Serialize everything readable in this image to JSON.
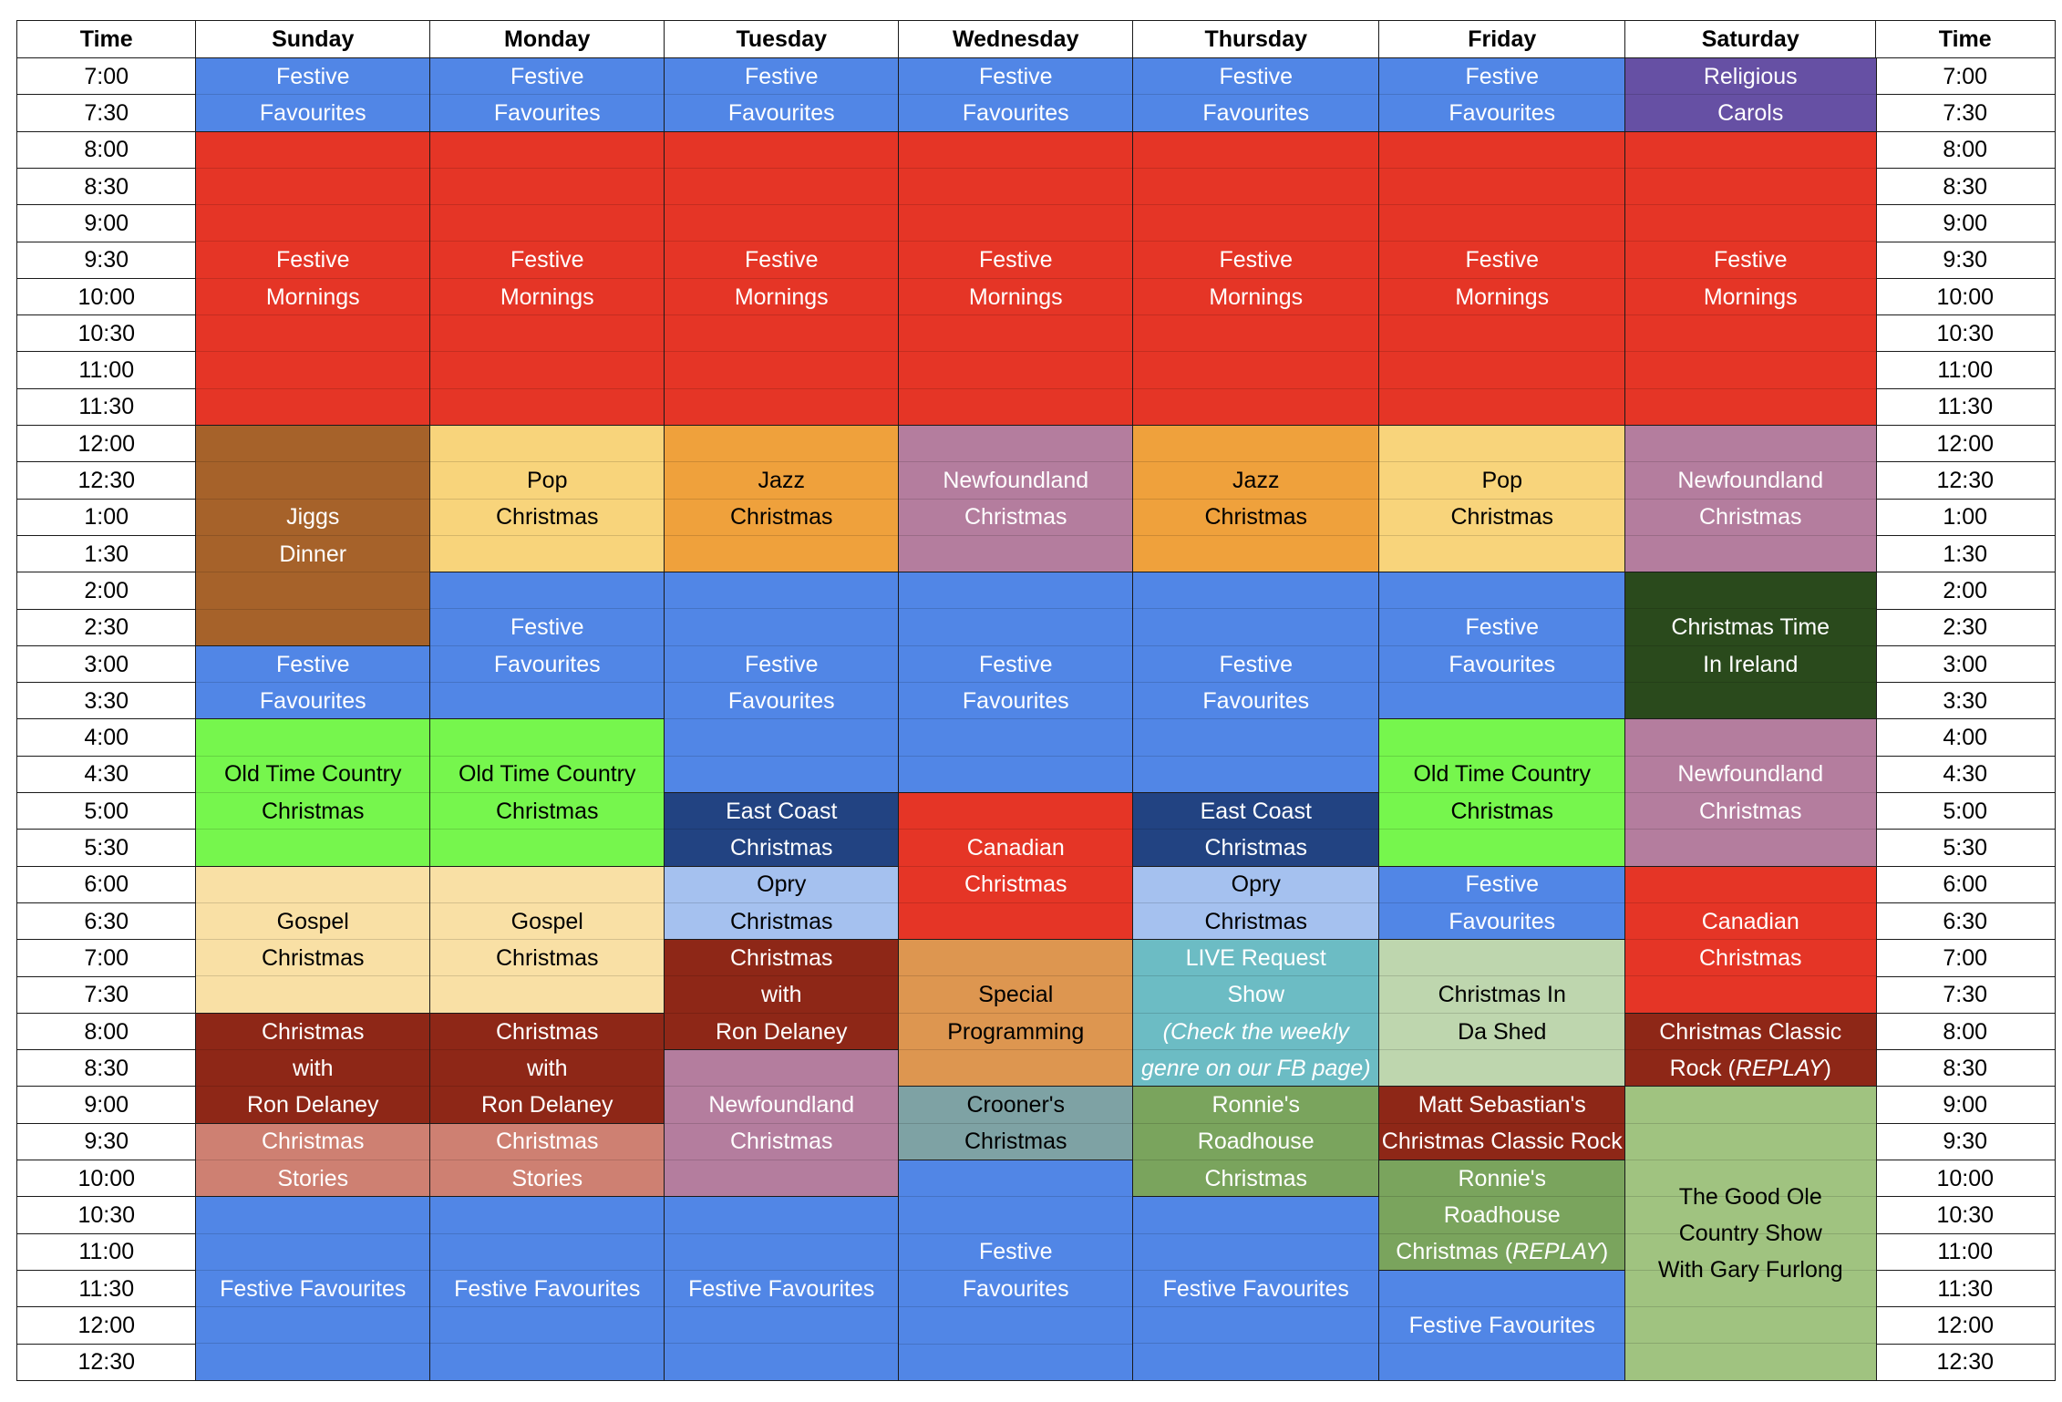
{
  "header": {
    "days": [
      "Sunday",
      "Monday",
      "Tuesday",
      "Wednesday",
      "Thursday",
      "Friday",
      "Saturday"
    ],
    "time_left": "Time",
    "time_right": "Time"
  },
  "times": [
    "7:00",
    "7:30",
    "8:00",
    "8:30",
    "9:00",
    "9:30",
    "10:00",
    "10:30",
    "11:00",
    "11:30",
    "12:00",
    "12:30",
    "1:00",
    "1:30",
    "2:00",
    "2:30",
    "3:00",
    "3:30",
    "4:00",
    "4:30",
    "5:00",
    "5:30",
    "6:00",
    "6:30",
    "7:00",
    "7:30",
    "8:00",
    "8:30",
    "9:00",
    "9:30",
    "10:00",
    "10:30",
    "11:00",
    "11:30",
    "12:00",
    "12:30"
  ],
  "colors": {
    "festive_favourites": "#5186E6",
    "festive_mornings": "#E53526",
    "religious_carols": "#6650A4",
    "jiggs_dinner": "#A6622A",
    "pop_christmas": "#F8D47B",
    "jazz_christmas": "#EFA13C",
    "newfoundland_christmas": "#B47D9E",
    "christmas_time_in_ireland": "#2A4A1C",
    "old_time_country": "#76F64D",
    "east_coast_christmas": "#224382",
    "canadian_christmas": "#E53526",
    "opry_christmas": "#A5C1EF",
    "gospel_christmas": "#F9E0A5",
    "ron_delaney": "#8E2717",
    "special_programming": "#DD9650",
    "live_request": "#6CBCC4",
    "christmas_in_da_shed": "#BED6AE",
    "classic_rock_replay": "#8E2717",
    "crooners_christmas": "#7EA2A4",
    "ronnies_roadhouse": "#7AA45D",
    "matt_sebastian": "#8E2717",
    "christmas_stories": "#CE8072",
    "good_ole_country": "#A0C380"
  },
  "programs": [
    {
      "day": 0,
      "start": 0,
      "span": 2,
      "color": "#5186E6",
      "text_color": "#ffffff",
      "lines": [
        "Festive",
        "Favourites"
      ]
    },
    {
      "day": 0,
      "start": 2,
      "span": 8,
      "color": "#E53526",
      "text_color": "#ffffff",
      "lines": [
        "Festive",
        "Mornings"
      ]
    },
    {
      "day": 0,
      "start": 10,
      "span": 6,
      "color": "#A6622A",
      "text_color": "#ffffff",
      "lines": [
        "Jiggs",
        "Dinner"
      ]
    },
    {
      "day": 0,
      "start": 16,
      "span": 2,
      "color": "#5186E6",
      "text_color": "#ffffff",
      "lines": [
        "Festive",
        "Favourites"
      ]
    },
    {
      "day": 0,
      "start": 18,
      "span": 4,
      "color": "#76F64D",
      "text_color": "#000000",
      "lines": [
        "Old Time Country",
        "Christmas"
      ]
    },
    {
      "day": 0,
      "start": 22,
      "span": 4,
      "color": "#F9E0A5",
      "text_color": "#000000",
      "lines": [
        "Gospel",
        "Christmas"
      ]
    },
    {
      "day": 0,
      "start": 26,
      "span": 3,
      "color": "#8E2717",
      "text_color": "#ffffff",
      "lines": [
        "Christmas",
        "with",
        "Ron Delaney"
      ]
    },
    {
      "day": 0,
      "start": 29,
      "span": 2,
      "color": "#CE8072",
      "text_color": "#ffffff",
      "lines": [
        "Christmas",
        "Stories"
      ]
    },
    {
      "day": 0,
      "start": 31,
      "span": 5,
      "color": "#5186E6",
      "text_color": "#ffffff",
      "lines": [
        "Festive Favourites"
      ]
    },
    {
      "day": 1,
      "start": 0,
      "span": 2,
      "color": "#5186E6",
      "text_color": "#ffffff",
      "lines": [
        "Festive",
        "Favourites"
      ]
    },
    {
      "day": 1,
      "start": 2,
      "span": 8,
      "color": "#E53526",
      "text_color": "#ffffff",
      "lines": [
        "Festive",
        "Mornings"
      ]
    },
    {
      "day": 1,
      "start": 10,
      "span": 4,
      "color": "#F8D47B",
      "text_color": "#000000",
      "lines": [
        "Pop",
        "Christmas"
      ]
    },
    {
      "day": 1,
      "start": 14,
      "span": 4,
      "color": "#5186E6",
      "text_color": "#ffffff",
      "lines": [
        "Festive",
        "Favourites"
      ]
    },
    {
      "day": 1,
      "start": 18,
      "span": 4,
      "color": "#76F64D",
      "text_color": "#000000",
      "lines": [
        "Old Time Country",
        "Christmas"
      ]
    },
    {
      "day": 1,
      "start": 22,
      "span": 4,
      "color": "#F9E0A5",
      "text_color": "#000000",
      "lines": [
        "Gospel",
        "Christmas"
      ]
    },
    {
      "day": 1,
      "start": 26,
      "span": 3,
      "color": "#8E2717",
      "text_color": "#ffffff",
      "lines": [
        "Christmas",
        "with",
        "Ron Delaney"
      ]
    },
    {
      "day": 1,
      "start": 29,
      "span": 2,
      "color": "#CE8072",
      "text_color": "#ffffff",
      "lines": [
        "Christmas",
        "Stories"
      ]
    },
    {
      "day": 1,
      "start": 31,
      "span": 5,
      "color": "#5186E6",
      "text_color": "#ffffff",
      "lines": [
        "Festive Favourites"
      ]
    },
    {
      "day": 2,
      "start": 0,
      "span": 2,
      "color": "#5186E6",
      "text_color": "#ffffff",
      "lines": [
        "Festive",
        "Favourites"
      ]
    },
    {
      "day": 2,
      "start": 2,
      "span": 8,
      "color": "#E53526",
      "text_color": "#ffffff",
      "lines": [
        "Festive",
        "Mornings"
      ]
    },
    {
      "day": 2,
      "start": 10,
      "span": 4,
      "color": "#EFA13C",
      "text_color": "#000000",
      "lines": [
        "Jazz",
        "Christmas"
      ]
    },
    {
      "day": 2,
      "start": 14,
      "span": 6,
      "color": "#5186E6",
      "text_color": "#ffffff",
      "lines": [
        "Festive",
        "Favourites"
      ]
    },
    {
      "day": 2,
      "start": 20,
      "span": 2,
      "color": "#224382",
      "text_color": "#ffffff",
      "lines": [
        "East Coast",
        "Christmas"
      ]
    },
    {
      "day": 2,
      "start": 22,
      "span": 2,
      "color": "#A5C1EF",
      "text_color": "#000000",
      "lines": [
        "Opry",
        "Christmas"
      ]
    },
    {
      "day": 2,
      "start": 24,
      "span": 3,
      "color": "#8E2717",
      "text_color": "#ffffff",
      "lines": [
        "Christmas",
        "with",
        "Ron Delaney"
      ]
    },
    {
      "day": 2,
      "start": 27,
      "span": 4,
      "color": "#B47D9E",
      "text_color": "#ffffff",
      "lines": [
        "Newfoundland",
        "Christmas"
      ]
    },
    {
      "day": 2,
      "start": 31,
      "span": 5,
      "color": "#5186E6",
      "text_color": "#ffffff",
      "lines": [
        "Festive Favourites"
      ]
    },
    {
      "day": 3,
      "start": 0,
      "span": 2,
      "color": "#5186E6",
      "text_color": "#ffffff",
      "lines": [
        "Festive",
        "Favourites"
      ]
    },
    {
      "day": 3,
      "start": 2,
      "span": 8,
      "color": "#E53526",
      "text_color": "#ffffff",
      "lines": [
        "Festive",
        "Mornings"
      ]
    },
    {
      "day": 3,
      "start": 10,
      "span": 4,
      "color": "#B47D9E",
      "text_color": "#ffffff",
      "lines": [
        "Newfoundland",
        "Christmas"
      ]
    },
    {
      "day": 3,
      "start": 14,
      "span": 6,
      "color": "#5186E6",
      "text_color": "#ffffff",
      "lines": [
        "Festive",
        "Favourites"
      ]
    },
    {
      "day": 3,
      "start": 20,
      "span": 4,
      "color": "#E53526",
      "text_color": "#ffffff",
      "lines": [
        "Canadian",
        "Christmas"
      ]
    },
    {
      "day": 3,
      "start": 24,
      "span": 4,
      "color": "#DD9650",
      "text_color": "#000000",
      "lines": [
        "Special",
        "Programming"
      ]
    },
    {
      "day": 3,
      "start": 28,
      "span": 2,
      "color": "#7EA2A4",
      "text_color": "#000000",
      "lines": [
        "Crooner's",
        "Christmas"
      ]
    },
    {
      "day": 3,
      "start": 30,
      "span": 6,
      "color": "#5186E6",
      "text_color": "#ffffff",
      "lines": [
        "Festive",
        "Favourites"
      ]
    },
    {
      "day": 4,
      "start": 0,
      "span": 2,
      "color": "#5186E6",
      "text_color": "#ffffff",
      "lines": [
        "Festive",
        "Favourites"
      ]
    },
    {
      "day": 4,
      "start": 2,
      "span": 8,
      "color": "#E53526",
      "text_color": "#ffffff",
      "lines": [
        "Festive",
        "Mornings"
      ]
    },
    {
      "day": 4,
      "start": 10,
      "span": 4,
      "color": "#EFA13C",
      "text_color": "#000000",
      "lines": [
        "Jazz",
        "Christmas"
      ]
    },
    {
      "day": 4,
      "start": 14,
      "span": 6,
      "color": "#5186E6",
      "text_color": "#ffffff",
      "lines": [
        "Festive",
        "Favourites"
      ]
    },
    {
      "day": 4,
      "start": 20,
      "span": 2,
      "color": "#224382",
      "text_color": "#ffffff",
      "lines": [
        "East Coast",
        "Christmas"
      ]
    },
    {
      "day": 4,
      "start": 22,
      "span": 2,
      "color": "#A5C1EF",
      "text_color": "#000000",
      "lines": [
        "Opry",
        "Christmas"
      ]
    },
    {
      "day": 4,
      "start": 24,
      "span": 4,
      "color": "#6CBCC4",
      "text_color": "#ffffff",
      "lines": [
        "LIVE Request",
        "Show",
        "(Check the weekly",
        "genre on our FB page)"
      ],
      "italic_lines": [
        2,
        3
      ]
    },
    {
      "day": 4,
      "start": 28,
      "span": 3,
      "color": "#7AA45D",
      "text_color": "#ffffff",
      "lines": [
        "Ronnie's",
        "Roadhouse",
        "Christmas"
      ]
    },
    {
      "day": 4,
      "start": 31,
      "span": 5,
      "color": "#5186E6",
      "text_color": "#ffffff",
      "lines": [
        "Festive Favourites"
      ]
    },
    {
      "day": 5,
      "start": 0,
      "span": 2,
      "color": "#5186E6",
      "text_color": "#ffffff",
      "lines": [
        "Festive",
        "Favourites"
      ]
    },
    {
      "day": 5,
      "start": 2,
      "span": 8,
      "color": "#E53526",
      "text_color": "#ffffff",
      "lines": [
        "Festive",
        "Mornings"
      ]
    },
    {
      "day": 5,
      "start": 10,
      "span": 4,
      "color": "#F8D47B",
      "text_color": "#000000",
      "lines": [
        "Pop",
        "Christmas"
      ]
    },
    {
      "day": 5,
      "start": 14,
      "span": 4,
      "color": "#5186E6",
      "text_color": "#ffffff",
      "lines": [
        "Festive",
        "Favourites"
      ]
    },
    {
      "day": 5,
      "start": 18,
      "span": 4,
      "color": "#76F64D",
      "text_color": "#000000",
      "lines": [
        "Old Time Country",
        "Christmas"
      ]
    },
    {
      "day": 5,
      "start": 22,
      "span": 2,
      "color": "#5186E6",
      "text_color": "#ffffff",
      "lines": [
        "Festive",
        "Favourites"
      ]
    },
    {
      "day": 5,
      "start": 24,
      "span": 4,
      "color": "#BED6AE",
      "text_color": "#000000",
      "lines": [
        "Christmas In",
        "Da Shed"
      ]
    },
    {
      "day": 5,
      "start": 28,
      "span": 2,
      "color": "#8E2717",
      "text_color": "#ffffff",
      "lines": [
        "Matt Sebastian's",
        "Christmas Classic Rock"
      ]
    },
    {
      "day": 5,
      "start": 30,
      "span": 3,
      "color": "#7AA45D",
      "text_color": "#ffffff",
      "lines": [
        "Ronnie's",
        "Roadhouse",
        "Christmas (REPLAY)"
      ],
      "italic_parts": {
        "2": "REPLAY"
      }
    },
    {
      "day": 5,
      "start": 33,
      "span": 3,
      "color": "#5186E6",
      "text_color": "#ffffff",
      "lines": [
        "Festive Favourites"
      ]
    },
    {
      "day": 6,
      "start": 0,
      "span": 2,
      "color": "#6650A4",
      "text_color": "#ffffff",
      "lines": [
        "Religious",
        "Carols"
      ]
    },
    {
      "day": 6,
      "start": 2,
      "span": 8,
      "color": "#E53526",
      "text_color": "#ffffff",
      "lines": [
        "Festive",
        "Mornings"
      ]
    },
    {
      "day": 6,
      "start": 10,
      "span": 4,
      "color": "#B47D9E",
      "text_color": "#ffffff",
      "lines": [
        "Newfoundland",
        "Christmas"
      ]
    },
    {
      "day": 6,
      "start": 14,
      "span": 4,
      "color": "#2A4A1C",
      "text_color": "#ffffff",
      "lines": [
        "Christmas Time",
        "In Ireland"
      ]
    },
    {
      "day": 6,
      "start": 18,
      "span": 4,
      "color": "#B47D9E",
      "text_color": "#ffffff",
      "lines": [
        "Newfoundland",
        "Christmas"
      ]
    },
    {
      "day": 6,
      "start": 22,
      "span": 4,
      "color": "#E53526",
      "text_color": "#ffffff",
      "lines": [
        "Canadian",
        "Christmas"
      ]
    },
    {
      "day": 6,
      "start": 26,
      "span": 2,
      "color": "#8E2717",
      "text_color": "#ffffff",
      "lines": [
        "Christmas Classic",
        "Rock (REPLAY)"
      ],
      "italic_parts": {
        "1": "REPLAY"
      }
    },
    {
      "day": 6,
      "start": 28,
      "span": 8,
      "color": "#A0C380",
      "text_color": "#000000",
      "lines": [
        "The Good Ole",
        "Country Show",
        "With Gary Furlong"
      ]
    }
  ]
}
